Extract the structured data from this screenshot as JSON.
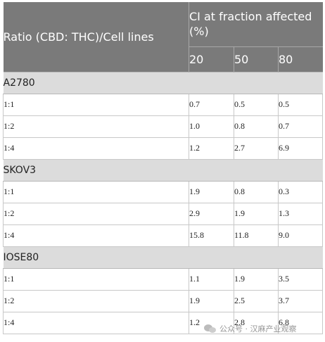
{
  "header": {
    "ratio_label": "Ratio (CBD: THC)/Cell lines",
    "ci_label": "CI at fraction affected (%)",
    "fractions": [
      "20",
      "50",
      "80"
    ]
  },
  "groups": [
    {
      "name": "A2780",
      "rows": [
        {
          "ratio": "1:1",
          "values": [
            "0.7",
            "0.5",
            "0.5"
          ]
        },
        {
          "ratio": "1:2",
          "values": [
            "1.0",
            "0.8",
            "0.7"
          ]
        },
        {
          "ratio": "1:4",
          "values": [
            "1.2",
            "2.7",
            "6.9"
          ]
        }
      ]
    },
    {
      "name": "SKOV3",
      "rows": [
        {
          "ratio": "1:1",
          "values": [
            "1.9",
            "0.8",
            "0.3"
          ]
        },
        {
          "ratio": "1:2",
          "values": [
            "2.9",
            "1.9",
            "1.3"
          ]
        },
        {
          "ratio": "1:4",
          "values": [
            "15.8",
            "11.8",
            "9.0"
          ]
        }
      ]
    },
    {
      "name": "IOSE80",
      "rows": [
        {
          "ratio": "1:1",
          "values": [
            "1.1",
            "1.9",
            "3.5"
          ]
        },
        {
          "ratio": "1:2",
          "values": [
            "1.9",
            "2.5",
            "3.7"
          ]
        },
        {
          "ratio": "1:4",
          "values": [
            "1.2",
            "2.8",
            "6.8"
          ]
        }
      ]
    }
  ],
  "watermark": {
    "text": "公众号 · 汉麻产业观察",
    "icon": "wechat-icon"
  }
}
